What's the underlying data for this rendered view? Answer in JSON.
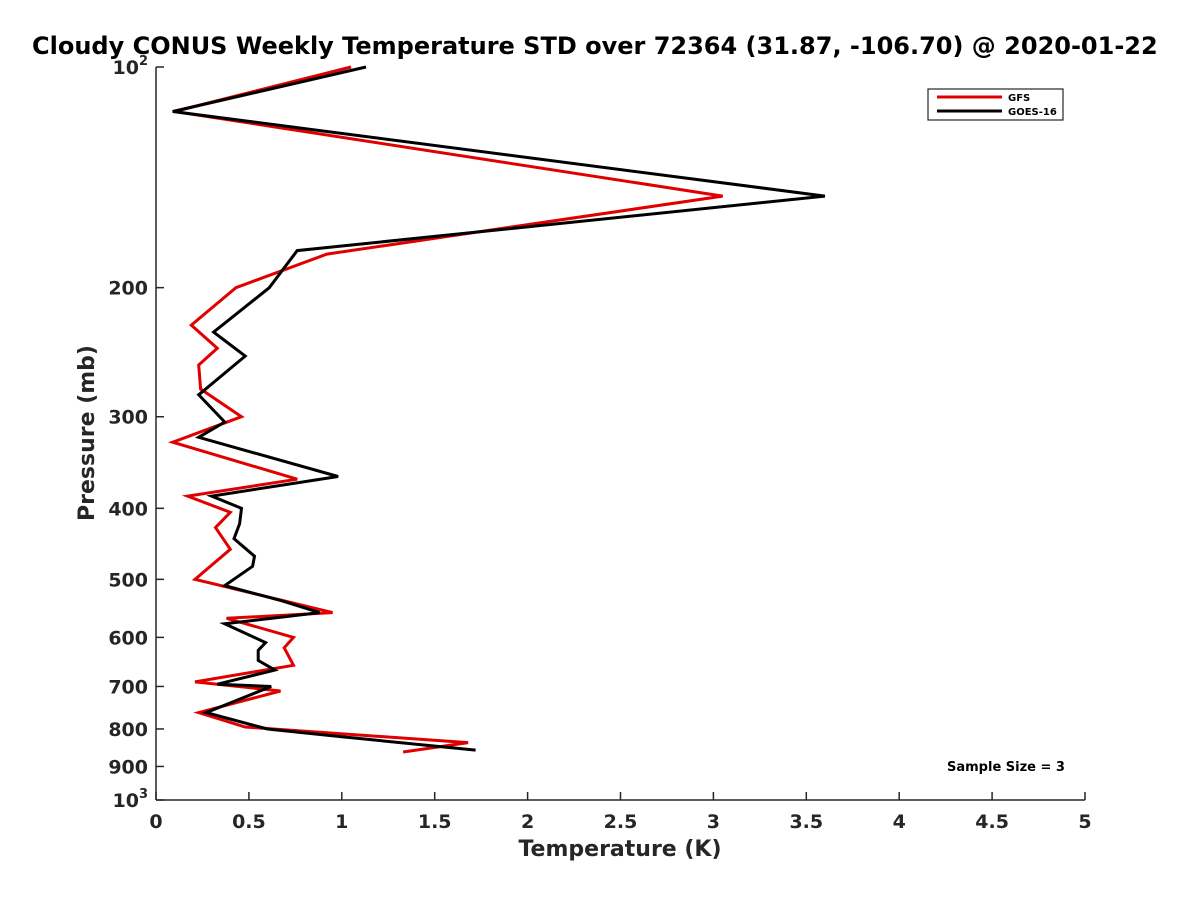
{
  "chart_data": {
    "type": "line",
    "title": "Cloudy CONUS Weekly Temperature STD over 72364 (31.87, -106.70) @ 2020-01-22",
    "xlabel": "Temperature (K)",
    "ylabel": "Pressure (mb)",
    "xlim": [
      0,
      5
    ],
    "ylim": [
      100,
      1000
    ],
    "y_scale": "log",
    "y_reversed": true,
    "x_ticks": [
      "0",
      "0.5",
      "1",
      "1.5",
      "2",
      "2.5",
      "3",
      "3.5",
      "4",
      "4.5",
      "5"
    ],
    "y_ticks": [
      {
        "value": 100,
        "base": "10",
        "exp": "2"
      },
      {
        "value": 200,
        "label": "200"
      },
      {
        "value": 300,
        "label": "300"
      },
      {
        "value": 400,
        "label": "400"
      },
      {
        "value": 500,
        "label": "500"
      },
      {
        "value": 600,
        "label": "600"
      },
      {
        "value": 700,
        "label": "700"
      },
      {
        "value": 800,
        "label": "800"
      },
      {
        "value": 900,
        "label": "900"
      },
      {
        "value": 1000,
        "base": "10",
        "exp": "3"
      }
    ],
    "legend": {
      "position": "top-right"
    },
    "annotation": "Sample Size = 3",
    "series": [
      {
        "name": "GFS",
        "color": "#e00000",
        "points": [
          [
            1.05,
            100
          ],
          [
            0.1,
            115
          ],
          [
            3.05,
            150
          ],
          [
            0.92,
            180
          ],
          [
            0.43,
            200
          ],
          [
            0.19,
            225
          ],
          [
            0.33,
            242
          ],
          [
            0.23,
            255
          ],
          [
            0.24,
            275
          ],
          [
            0.46,
            300
          ],
          [
            0.09,
            325
          ],
          [
            0.76,
            365
          ],
          [
            0.17,
            385
          ],
          [
            0.4,
            405
          ],
          [
            0.32,
            425
          ],
          [
            0.4,
            455
          ],
          [
            0.21,
            500
          ],
          [
            0.95,
            555
          ],
          [
            0.38,
            565
          ],
          [
            0.74,
            600
          ],
          [
            0.69,
            620
          ],
          [
            0.74,
            655
          ],
          [
            0.21,
            690
          ],
          [
            0.67,
            710
          ],
          [
            0.23,
            760
          ],
          [
            0.48,
            795
          ],
          [
            1.68,
            835
          ],
          [
            1.33,
            860
          ]
        ]
      },
      {
        "name": "GOES-16",
        "color": "#000000",
        "points": [
          [
            1.13,
            100
          ],
          [
            0.09,
            115
          ],
          [
            3.6,
            150
          ],
          [
            0.76,
            178
          ],
          [
            0.61,
            200
          ],
          [
            0.31,
            230
          ],
          [
            0.48,
            248
          ],
          [
            0.23,
            280
          ],
          [
            0.37,
            305
          ],
          [
            0.23,
            320
          ],
          [
            0.98,
            362
          ],
          [
            0.3,
            385
          ],
          [
            0.46,
            400
          ],
          [
            0.45,
            420
          ],
          [
            0.42,
            440
          ],
          [
            0.53,
            465
          ],
          [
            0.52,
            480
          ],
          [
            0.37,
            510
          ],
          [
            0.68,
            535
          ],
          [
            0.88,
            555
          ],
          [
            0.37,
            575
          ],
          [
            0.59,
            610
          ],
          [
            0.55,
            625
          ],
          [
            0.55,
            645
          ],
          [
            0.64,
            665
          ],
          [
            0.33,
            695
          ],
          [
            0.62,
            700
          ],
          [
            0.27,
            760
          ],
          [
            0.6,
            800
          ],
          [
            1.0,
            820
          ],
          [
            1.72,
            855
          ]
        ]
      }
    ]
  }
}
